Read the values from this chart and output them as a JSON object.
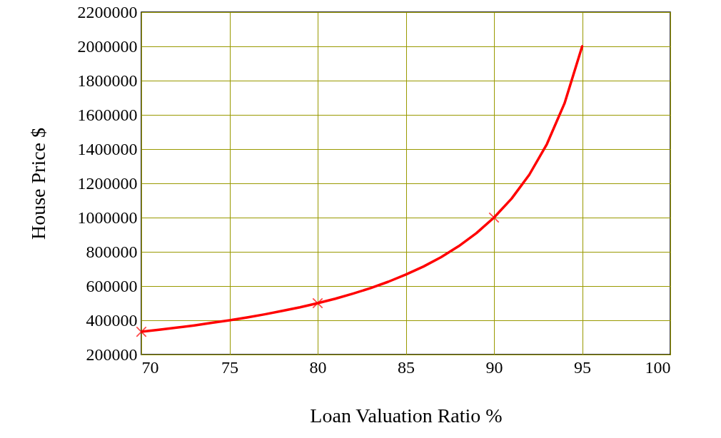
{
  "chart_data": {
    "type": "line",
    "xlabel": "Loan Valuation Ratio %",
    "ylabel": "House Price $",
    "xlim": [
      70,
      100
    ],
    "xticks": [
      70,
      75,
      80,
      85,
      90,
      95,
      100
    ],
    "ylim": [
      200000,
      2200000
    ],
    "yticks": [
      200000,
      400000,
      600000,
      800000,
      1000000,
      1200000,
      1400000,
      1600000,
      1800000,
      2000000,
      2200000
    ],
    "grid": true,
    "legend": false,
    "line_style": "solid",
    "series": [
      {
        "color": "#ff0000",
        "marker": "none",
        "x": [
          70,
          71,
          72,
          73,
          74,
          75,
          76,
          77,
          78,
          79,
          80,
          81,
          82,
          83,
          84,
          85,
          86,
          87,
          88,
          89,
          90,
          91,
          92,
          93,
          94,
          95
        ],
        "values": [
          333000,
          345000,
          357000,
          370000,
          385000,
          400000,
          417000,
          435000,
          455000,
          476000,
          500000,
          526000,
          556000,
          588000,
          625000,
          667000,
          714000,
          769000,
          833000,
          909000,
          1000000,
          1111000,
          1250000,
          1429000,
          1667000,
          2000000
        ]
      },
      {
        "type": "scatter",
        "color": "#ff0000",
        "marker": "cross",
        "x": [
          70,
          80,
          90
        ],
        "values": [
          333000,
          500000,
          1000000
        ]
      }
    ]
  }
}
